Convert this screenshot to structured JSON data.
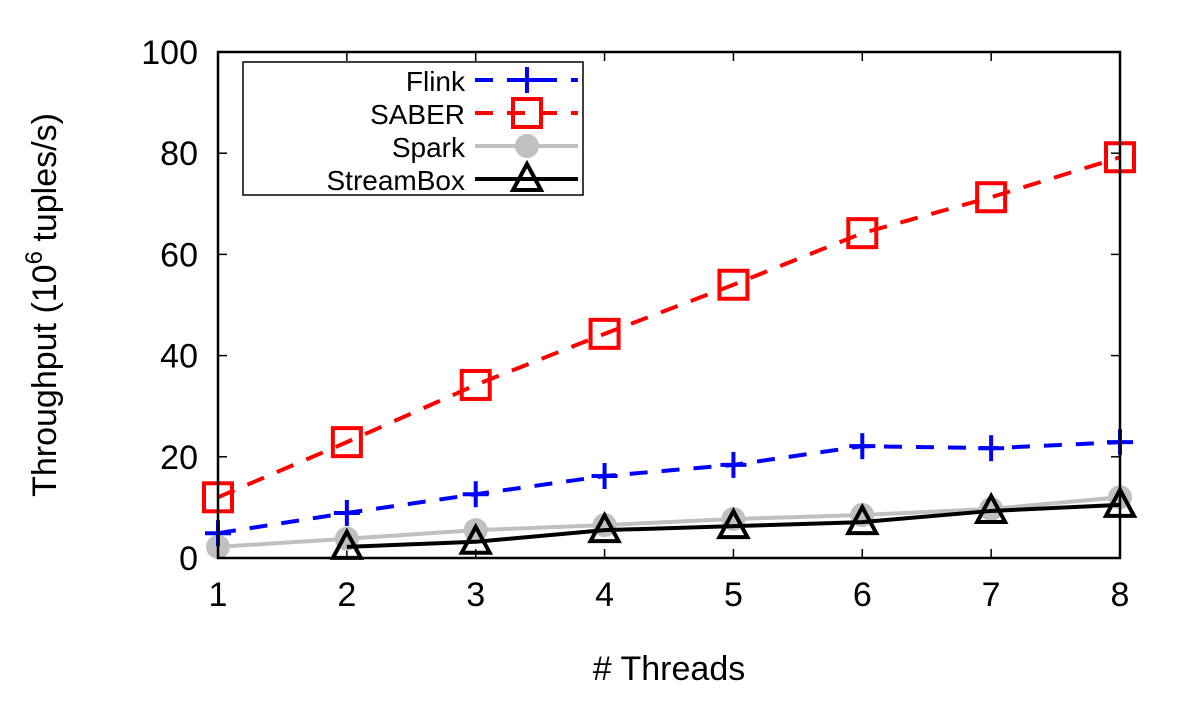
{
  "chart_data": {
    "type": "line",
    "title": "",
    "xlabel": "# Threads",
    "ylabel_prefix": "Throughput (10",
    "ylabel_sup": "6",
    "ylabel_suffix": " tuples/s)",
    "xlim": [
      1,
      8
    ],
    "ylim": [
      0,
      100
    ],
    "x_ticks": [
      "1",
      "2",
      "3",
      "4",
      "5",
      "6",
      "7",
      "8"
    ],
    "y_ticks": [
      "0",
      "20",
      "40",
      "60",
      "80",
      "100"
    ],
    "legend_position": "top-left",
    "series": [
      {
        "name": "Flink",
        "color": "#0000ff",
        "marker": "plus",
        "dash": "dashed",
        "x": [
          1,
          2,
          3,
          4,
          5,
          6,
          7,
          8
        ],
        "values": [
          4.9,
          8.9,
          12.6,
          16.2,
          18.4,
          22.1,
          21.7,
          22.9
        ]
      },
      {
        "name": "SABER",
        "color": "#ff0000",
        "marker": "square",
        "dash": "dashed",
        "x": [
          1,
          2,
          3,
          4,
          5,
          6,
          7,
          8
        ],
        "values": [
          12.0,
          22.9,
          34.2,
          44.3,
          54.0,
          64.2,
          71.3,
          79.2
        ]
      },
      {
        "name": "Spark",
        "color": "#c0c0c0",
        "marker": "circle",
        "dash": "solid",
        "x": [
          1,
          2,
          3,
          4,
          5,
          6,
          7,
          8
        ],
        "values": [
          2.2,
          3.8,
          5.5,
          6.5,
          7.7,
          8.5,
          9.7,
          12.0
        ]
      },
      {
        "name": "StreamBox",
        "color": "#000000",
        "marker": "triangle",
        "dash": "solid",
        "x": [
          2,
          3,
          4,
          5,
          6,
          7,
          8
        ],
        "values": [
          2.2,
          3.2,
          5.5,
          6.3,
          7.1,
          9.3,
          10.5
        ]
      }
    ]
  }
}
